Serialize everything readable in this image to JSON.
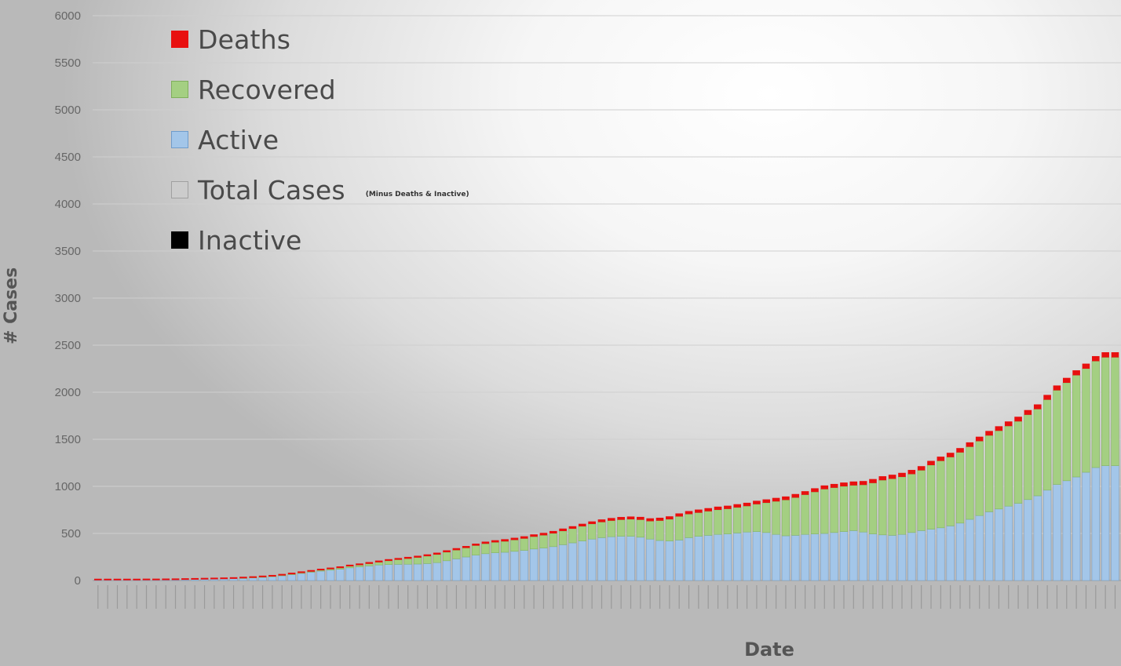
{
  "chart_data": {
    "type": "bar",
    "stacked": true,
    "title": "",
    "xlabel": "Date",
    "ylabel": "# Cases",
    "ylim": [
      0,
      6000
    ],
    "yticks": [
      0,
      500,
      1000,
      1500,
      2000,
      2500,
      3000,
      3500,
      4000,
      4500,
      5000,
      5500,
      6000
    ],
    "grid": true,
    "legend_position": "top-left",
    "legend_note": "(Minus Deaths & Inactive)",
    "colors": {
      "Deaths": "#e8100f",
      "Recovered": "#a4cf82",
      "Active": "#a3c6e9",
      "Total Cases": "#cccccc",
      "Inactive": "#000000"
    },
    "series": [
      {
        "name": "Active",
        "values": [
          2,
          2,
          2,
          2,
          2,
          3,
          3,
          4,
          5,
          7,
          9,
          11,
          13,
          15,
          18,
          22,
          27,
          33,
          40,
          50,
          62,
          75,
          88,
          100,
          110,
          120,
          135,
          145,
          155,
          165,
          170,
          172,
          173,
          175,
          180,
          190,
          210,
          230,
          250,
          270,
          285,
          295,
          300,
          310,
          320,
          335,
          345,
          360,
          380,
          400,
          420,
          440,
          455,
          465,
          470,
          470,
          460,
          440,
          425,
          420,
          430,
          455,
          470,
          480,
          490,
          495,
          505,
          515,
          520,
          510,
          490,
          475,
          480,
          490,
          495,
          500,
          510,
          520,
          530,
          515,
          495,
          485,
          480,
          490,
          510,
          530,
          545,
          560,
          580,
          610,
          650,
          690,
          730,
          760,
          790,
          820,
          860,
          900,
          960,
          1020,
          1060,
          1100,
          1150,
          1200,
          1220,
          1220
        ]
      },
      {
        "name": "Recovered",
        "values": [
          0,
          0,
          0,
          0,
          0,
          0,
          0,
          0,
          0,
          0,
          0,
          0,
          0,
          0,
          0,
          1,
          1,
          2,
          2,
          3,
          4,
          5,
          6,
          8,
          10,
          12,
          15,
          18,
          22,
          28,
          38,
          48,
          58,
          68,
          78,
          85,
          90,
          92,
          95,
          100,
          105,
          110,
          115,
          120,
          125,
          130,
          135,
          140,
          145,
          150,
          155,
          160,
          165,
          170,
          175,
          180,
          185,
          190,
          210,
          230,
          250,
          250,
          250,
          255,
          260,
          265,
          270,
          275,
          290,
          315,
          350,
          380,
          400,
          420,
          445,
          470,
          475,
          480,
          480,
          500,
          540,
          580,
          600,
          610,
          620,
          640,
          680,
          710,
          730,
          750,
          770,
          790,
          810,
          830,
          850,
          870,
          900,
          920,
          960,
          1000,
          1040,
          1080,
          1100,
          1130,
          1150,
          1150
        ]
      },
      {
        "name": "Deaths",
        "values": [
          0,
          0,
          0,
          0,
          0,
          0,
          0,
          0,
          0,
          0,
          0,
          0,
          0,
          0,
          0,
          0,
          0,
          0,
          0,
          0,
          0,
          0,
          0,
          0,
          0,
          1,
          1,
          1,
          2,
          2,
          2,
          2,
          3,
          3,
          3,
          4,
          4,
          5,
          5,
          5,
          6,
          6,
          7,
          7,
          8,
          8,
          9,
          9,
          10,
          10,
          11,
          11,
          12,
          12,
          13,
          13,
          14,
          14,
          15,
          15,
          16,
          16,
          17,
          17,
          18,
          18,
          19,
          19,
          20,
          20,
          21,
          21,
          22,
          22,
          23,
          23,
          24,
          24,
          25,
          25,
          26,
          26,
          27,
          27,
          28,
          28,
          29,
          29,
          30,
          30,
          31,
          31,
          32,
          32,
          33,
          33,
          34,
          34,
          35,
          35,
          36,
          36,
          37,
          37,
          38,
          38
        ]
      },
      {
        "name": "Total Cases",
        "values": []
      },
      {
        "name": "Inactive",
        "values": []
      }
    ]
  }
}
